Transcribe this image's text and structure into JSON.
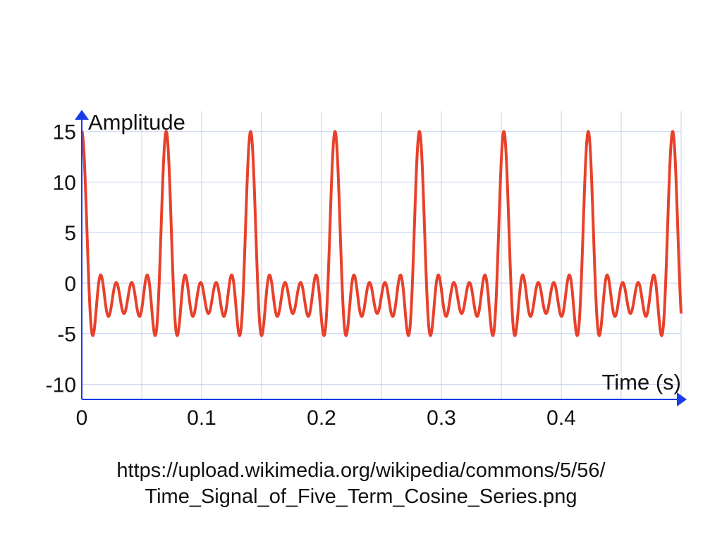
{
  "chart_data": {
    "type": "line",
    "xlabel": "Time (s)",
    "ylabel": "Amplitude",
    "xlim": [
      0,
      0.5
    ],
    "ylim": [
      -11.5,
      17
    ],
    "x_ticks": [
      0,
      0.1,
      0.2,
      0.3,
      0.4
    ],
    "x_tick_labels": [
      "0",
      "0.1",
      "0.2",
      "0.3",
      "0.4"
    ],
    "y_ticks": [
      15,
      10,
      5,
      0,
      -5,
      -10
    ],
    "y_tick_labels": [
      "15",
      "10",
      "5",
      "0",
      "-5",
      "-10"
    ],
    "grid": true,
    "series": [
      {
        "fundamental_frequency_hz": 14.2,
        "harmonics": [
          1,
          2,
          3,
          4,
          5
        ],
        "amplitudes": [
          3,
          3,
          3,
          3,
          3
        ],
        "x_range": [
          0,
          0.5
        ]
      }
    ],
    "colors": {
      "series": "#e8412b",
      "axes": "#1a3be8",
      "grid": "#c6cff2"
    }
  },
  "source": {
    "line1": "https://upload.wikimedia.org/wikipedia/commons/5/56/",
    "line2": "Time_Signal_of_Five_Term_Cosine_Series.png"
  }
}
